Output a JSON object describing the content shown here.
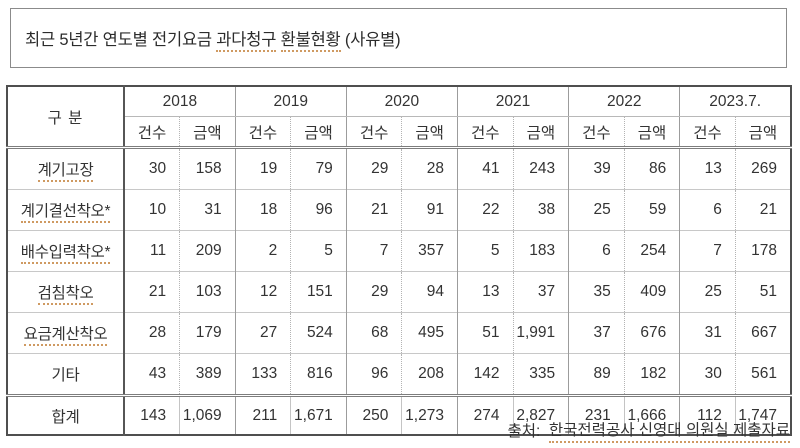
{
  "title": {
    "prefix": "최근 5년간 연도별 전기요금 ",
    "word_underlined_1": "과다청구",
    "word_underlined_2": "환불현황",
    "suffix": " (사유별)"
  },
  "table": {
    "corner_label": "구 분",
    "years": [
      "2018",
      "2019",
      "2020",
      "2021",
      "2022",
      "2023.7."
    ],
    "sub_headers": [
      "건수",
      "금액"
    ],
    "rows": [
      {
        "label": "계기고장",
        "underlined": true,
        "values": [
          "30",
          "158",
          "19",
          "79",
          "29",
          "28",
          "41",
          "243",
          "39",
          "86",
          "13",
          "269"
        ]
      },
      {
        "label": "계기결선착오*",
        "underlined": true,
        "values": [
          "10",
          "31",
          "18",
          "96",
          "21",
          "91",
          "22",
          "38",
          "25",
          "59",
          "6",
          "21"
        ]
      },
      {
        "label": "배수입력착오*",
        "underlined": true,
        "values": [
          "11",
          "209",
          "2",
          "5",
          "7",
          "357",
          "5",
          "183",
          "6",
          "254",
          "7",
          "178"
        ]
      },
      {
        "label": "검침착오",
        "underlined": true,
        "values": [
          "21",
          "103",
          "12",
          "151",
          "29",
          "94",
          "13",
          "37",
          "35",
          "409",
          "25",
          "51"
        ]
      },
      {
        "label": "요금계산착오",
        "underlined": true,
        "values": [
          "28",
          "179",
          "27",
          "524",
          "68",
          "495",
          "51",
          "1,991",
          "37",
          "676",
          "31",
          "667"
        ]
      },
      {
        "label": "기타",
        "underlined": false,
        "values": [
          "43",
          "389",
          "133",
          "816",
          "96",
          "208",
          "142",
          "335",
          "89",
          "182",
          "30",
          "561"
        ]
      }
    ],
    "total_row": {
      "label": "합계",
      "values": [
        "143",
        "1,069",
        "211",
        "1,671",
        "250",
        "1,273",
        "274",
        "2,827",
        "231",
        "1,666",
        "112",
        "1,747"
      ]
    }
  },
  "footer": {
    "source_prefix": "출처:  ",
    "source_text": "한국전력공사 신영대 의원실 제출자료"
  },
  "colors": {
    "spellcheck_underline": "#cf9a62",
    "outer_border": "#4f4f4f",
    "inner_border_light": "#c8c8c8",
    "group_border": "#9c9c9c",
    "text": "#333333"
  }
}
